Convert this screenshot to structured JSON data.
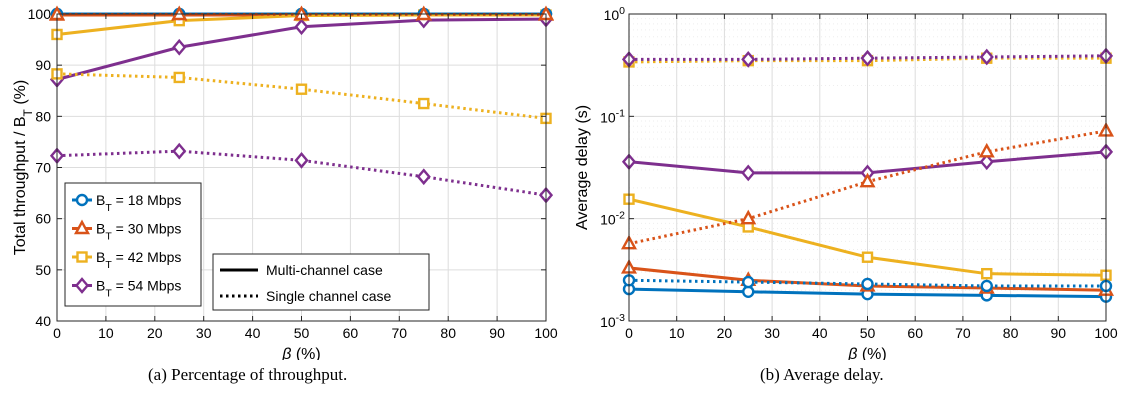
{
  "colors": {
    "blue": "#0072BD",
    "orange": "#D95319",
    "yellow": "#EDB120",
    "purple": "#7E2F8E",
    "grid": "#dddddd"
  },
  "captions": {
    "a": "(a) Percentage of throughput.",
    "b": "(b) Average delay."
  },
  "legend": {
    "series": [
      {
        "base": "B",
        "sub": "T",
        "rest": " = 18 Mbps",
        "color": "#0072BD",
        "marker": "circle"
      },
      {
        "base": "B",
        "sub": "T",
        "rest": " = 30 Mbps",
        "color": "#D95319",
        "marker": "triangle"
      },
      {
        "base": "B",
        "sub": "T",
        "rest": " = 42 Mbps",
        "color": "#EDB120",
        "marker": "square"
      },
      {
        "base": "B",
        "sub": "T",
        "rest": " = 54 Mbps",
        "color": "#7E2F8E",
        "marker": "diamond"
      }
    ],
    "styles": [
      {
        "label": "Multi-channel case",
        "dash": "solid"
      },
      {
        "label": "Single channel case",
        "dash": "dotted"
      }
    ]
  },
  "chart_data": [
    {
      "type": "line",
      "ylabel_main": "Total throughput / B",
      "ylabel_sub": "T",
      "ylabel_tail": " (%)",
      "xlabel_greek": "β",
      "xlabel_tail": " (%)",
      "xlim": [
        0,
        100
      ],
      "ylim": [
        40,
        100
      ],
      "yscale": "linear",
      "grid": true,
      "xticks": [
        "0",
        "10",
        "20",
        "30",
        "40",
        "50",
        "60",
        "70",
        "80",
        "90",
        "100"
      ],
      "yticks": [
        "40",
        "50",
        "60",
        "70",
        "80",
        "90",
        "100"
      ],
      "x": [
        0,
        25,
        50,
        75,
        100
      ],
      "series": [
        {
          "name": "B_T = 18 Mbps, Multi-channel",
          "color": "#0072BD",
          "marker": "circle",
          "dash": "solid",
          "values": [
            100,
            100,
            100,
            100,
            100
          ]
        },
        {
          "name": "B_T = 30 Mbps, Multi-channel",
          "color": "#D95319",
          "marker": "triangle",
          "dash": "solid",
          "values": [
            99.8,
            99.8,
            99.8,
            99.8,
            99.8
          ]
        },
        {
          "name": "B_T = 42 Mbps, Multi-channel",
          "color": "#EDB120",
          "marker": "square",
          "dash": "solid",
          "values": [
            96,
            98.7,
            99.7,
            99.8,
            99.8
          ]
        },
        {
          "name": "B_T = 54 Mbps, Multi-channel",
          "color": "#7E2F8E",
          "marker": "diamond",
          "dash": "solid",
          "values": [
            87.2,
            93.5,
            97.5,
            98.8,
            99
          ]
        },
        {
          "name": "B_T = 18 Mbps, Single channel",
          "color": "#0072BD",
          "marker": "circle",
          "dash": "dotted",
          "values": [
            100,
            100,
            100,
            100,
            100
          ]
        },
        {
          "name": "B_T = 30 Mbps, Single channel",
          "color": "#D95319",
          "marker": "triangle",
          "dash": "dotted",
          "values": [
            99.9,
            99.9,
            99.9,
            99.9,
            99.9
          ]
        },
        {
          "name": "B_T = 42 Mbps, Single channel",
          "color": "#EDB120",
          "marker": "square",
          "dash": "dotted",
          "values": [
            88.3,
            87.6,
            85.3,
            82.5,
            79.6
          ]
        },
        {
          "name": "B_T = 54 Mbps, Single channel",
          "color": "#7E2F8E",
          "marker": "diamond",
          "dash": "dotted",
          "values": [
            72.3,
            73.2,
            71.4,
            68.2,
            64.6
          ]
        }
      ]
    },
    {
      "type": "line",
      "ylabel": "Average delay (s)",
      "xlabel_greek": "β",
      "xlabel_tail": " (%)",
      "xlim": [
        0,
        100
      ],
      "ylim": [
        0.001,
        1
      ],
      "yscale": "log",
      "grid": true,
      "xticks": [
        "0",
        "10",
        "20",
        "30",
        "40",
        "50",
        "60",
        "70",
        "80",
        "90",
        "100"
      ],
      "yticks": [
        {
          "base": "10",
          "exp": "-3"
        },
        {
          "base": "10",
          "exp": "-2"
        },
        {
          "base": "10",
          "exp": "-1"
        },
        {
          "base": "10",
          "exp": "0"
        }
      ],
      "x": [
        0,
        25,
        50,
        75,
        100
      ],
      "series": [
        {
          "name": "B_T = 18 Mbps, Multi-channel",
          "color": "#0072BD",
          "marker": "circle",
          "dash": "solid",
          "values": [
            0.00205,
            0.00193,
            0.00183,
            0.00178,
            0.00173
          ]
        },
        {
          "name": "B_T = 30 Mbps, Multi-channel",
          "color": "#D95319",
          "marker": "triangle",
          "dash": "solid",
          "values": [
            0.0033,
            0.0025,
            0.0022,
            0.0021,
            0.002
          ]
        },
        {
          "name": "B_T = 42 Mbps, Multi-channel",
          "color": "#EDB120",
          "marker": "square",
          "dash": "solid",
          "values": [
            0.0155,
            0.0083,
            0.0042,
            0.0029,
            0.0028
          ]
        },
        {
          "name": "B_T = 54 Mbps, Multi-channel",
          "color": "#7E2F8E",
          "marker": "diamond",
          "dash": "solid",
          "values": [
            0.036,
            0.028,
            0.028,
            0.036,
            0.045
          ]
        },
        {
          "name": "B_T = 18 Mbps, Single channel",
          "color": "#0072BD",
          "marker": "circle",
          "dash": "dotted",
          "values": [
            0.0025,
            0.0024,
            0.0023,
            0.0022,
            0.0022
          ]
        },
        {
          "name": "B_T = 30 Mbps, Single channel",
          "color": "#D95319",
          "marker": "triangle",
          "dash": "dotted",
          "values": [
            0.0057,
            0.01,
            0.023,
            0.045,
            0.072
          ]
        },
        {
          "name": "B_T = 42 Mbps, Single channel",
          "color": "#EDB120",
          "marker": "square",
          "dash": "dotted",
          "values": [
            0.34,
            0.35,
            0.35,
            0.37,
            0.37
          ]
        },
        {
          "name": "B_T = 54 Mbps, Single channel",
          "color": "#7E2F8E",
          "marker": "diamond",
          "dash": "dotted",
          "values": [
            0.36,
            0.36,
            0.37,
            0.38,
            0.39
          ]
        }
      ]
    }
  ]
}
